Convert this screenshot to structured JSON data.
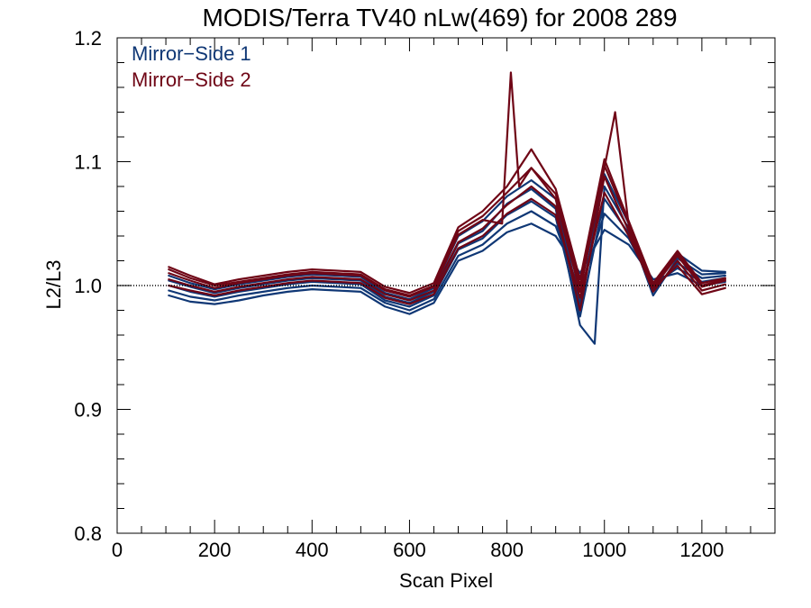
{
  "chart_data": {
    "type": "line",
    "title": "MODIS/Terra TV40 nLw(469) for 2008 289",
    "xlabel": "Scan Pixel",
    "ylabel": "L2/L3",
    "xlim": [
      0,
      1350
    ],
    "ylim": [
      0.8,
      1.2
    ],
    "x_ticks": [
      0,
      200,
      400,
      600,
      800,
      1000,
      1200
    ],
    "y_ticks": [
      0.8,
      0.9,
      1.0,
      1.1,
      1.2
    ],
    "x_tick_labels": [
      "0",
      "200",
      "400",
      "600",
      "800",
      "1000",
      "1200"
    ],
    "y_tick_labels": [
      "0.8",
      "0.9",
      "1.0",
      "1.1",
      "1.2"
    ],
    "reference_line": 1.0,
    "legend": {
      "location": "top-left",
      "entries": [
        {
          "label": "Mirror−Side 1",
          "color": "#0f3775"
        },
        {
          "label": "Mirror−Side 2",
          "color": "#6f0616"
        }
      ]
    },
    "series": [
      {
        "name": "Mirror-Side 1",
        "color": "#0f3775",
        "lines": [
          {
            "x": [
              106,
              150,
              200,
              250,
              300,
              350,
              400,
              450,
              500,
              550,
              600,
              650,
              700,
              750,
              800,
              850,
              900,
              950,
              1000,
              1050,
              1100,
              1150,
              1200,
              1248
            ],
            "y": [
              0.992,
              0.987,
              0.985,
              0.988,
              0.992,
              0.995,
              0.997,
              0.996,
              0.995,
              0.983,
              0.977,
              0.986,
              1.02,
              1.028,
              1.043,
              1.05,
              1.04,
              1.01,
              1.045,
              1.033,
              1.005,
              1.01,
              1.0,
              1.003
            ]
          },
          {
            "x": [
              106,
              150,
              200,
              250,
              300,
              350,
              400,
              450,
              500,
              550,
              600,
              650,
              700,
              750,
              800,
              850,
              900,
              950,
              1000,
              1050,
              1100,
              1150,
              1200,
              1248
            ],
            "y": [
              0.996,
              0.991,
              0.988,
              0.992,
              0.995,
              0.998,
              1.0,
              0.999,
              0.998,
              0.986,
              0.98,
              0.989,
              1.024,
              1.033,
              1.05,
              1.06,
              1.048,
              0.995,
              1.058,
              1.038,
              1.001,
              1.014,
              1.003,
              1.006
            ]
          },
          {
            "x": [
              106,
              150,
              200,
              250,
              300,
              350,
              400,
              450,
              500,
              550,
              600,
              650,
              700,
              750,
              800,
              850,
              900,
              950,
              1000,
              1050,
              1100,
              1150,
              1200,
              1248
            ],
            "y": [
              1.0,
              0.995,
              0.991,
              0.995,
              0.998,
              1.001,
              1.003,
              1.002,
              1.001,
              0.988,
              0.983,
              0.992,
              1.029,
              1.038,
              1.057,
              1.068,
              1.055,
              0.975,
              1.07,
              1.042,
              0.996,
              1.018,
              1.006,
              1.008
            ]
          },
          {
            "x": [
              106,
              150,
              200,
              250,
              300,
              350,
              400,
              450,
              500,
              550,
              600,
              650,
              700,
              750,
              800,
              850,
              900,
              950,
              980,
              1000,
              1050,
              1100,
              1150,
              1200,
              1248
            ],
            "y": [
              1.004,
              0.999,
              0.994,
              0.998,
              1.001,
              1.004,
              1.006,
              1.005,
              1.004,
              0.991,
              0.986,
              0.995,
              1.034,
              1.044,
              1.066,
              1.078,
              1.062,
              0.968,
              0.953,
              1.08,
              1.046,
              0.992,
              1.022,
              1.009,
              1.01
            ]
          },
          {
            "x": [
              106,
              150,
              200,
              250,
              300,
              350,
              400,
              450,
              500,
              550,
              600,
              650,
              700,
              750,
              800,
              850,
              900,
              950,
              1000,
              1050,
              1100,
              1150,
              1200,
              1248
            ],
            "y": [
              1.008,
              1.002,
              0.997,
              1.001,
              1.004,
              1.007,
              1.009,
              1.008,
              1.007,
              0.994,
              0.989,
              0.998,
              1.04,
              1.052,
              1.072,
              1.085,
              1.07,
              0.985,
              1.09,
              1.05,
              0.999,
              1.026,
              1.012,
              1.011
            ]
          }
        ]
      },
      {
        "name": "Mirror-Side 2",
        "color": "#6f0616",
        "lines": [
          {
            "x": [
              106,
              150,
              200,
              250,
              300,
              350,
              400,
              450,
              500,
              550,
              600,
              650,
              700,
              750,
              800,
              850,
              900,
              950,
              1000,
              1050,
              1100,
              1150,
              1200,
              1248
            ],
            "y": [
              1.0,
              0.996,
              0.992,
              0.996,
              0.999,
              1.002,
              1.004,
              1.003,
              1.002,
              0.99,
              0.985,
              0.993,
              1.03,
              1.04,
              1.058,
              1.07,
              1.057,
              0.99,
              1.075,
              1.04,
              0.998,
              1.016,
              0.993,
              0.998
            ]
          },
          {
            "x": [
              106,
              150,
              200,
              250,
              300,
              350,
              400,
              450,
              500,
              550,
              600,
              650,
              700,
              750,
              800,
              850,
              900,
              950,
              1000,
              1050,
              1100,
              1150,
              1200,
              1248
            ],
            "y": [
              1.005,
              1.0,
              0.995,
              0.999,
              1.002,
              1.005,
              1.007,
              1.006,
              1.005,
              0.993,
              0.988,
              0.996,
              1.035,
              1.046,
              1.065,
              1.08,
              1.064,
              0.98,
              1.088,
              1.044,
              0.995,
              1.02,
              0.996,
              1.001
            ]
          },
          {
            "x": [
              106,
              150,
              200,
              250,
              300,
              350,
              400,
              450,
              500,
              550,
              600,
              650,
              700,
              750,
              790,
              808,
              825,
              850,
              900,
              950,
              1000,
              1022,
              1050,
              1100,
              1150,
              1200,
              1248
            ],
            "y": [
              1.01,
              1.004,
              0.998,
              1.002,
              1.005,
              1.008,
              1.01,
              1.009,
              1.008,
              0.996,
              0.991,
              0.999,
              1.041,
              1.053,
              1.05,
              1.172,
              1.08,
              1.095,
              1.07,
              0.995,
              1.095,
              1.14,
              1.048,
              0.998,
              1.024,
              0.999,
              1.004
            ]
          },
          {
            "x": [
              106,
              150,
              200,
              250,
              300,
              350,
              400,
              450,
              500,
              550,
              600,
              650,
              700,
              750,
              800,
              850,
              900,
              950,
              1000,
              1050,
              1100,
              1150,
              1200,
              1248
            ],
            "y": [
              1.015,
              1.008,
              1.001,
              1.005,
              1.008,
              1.011,
              1.013,
              1.012,
              1.011,
              0.999,
              0.994,
              1.002,
              1.047,
              1.06,
              1.08,
              1.11,
              1.078,
              1.005,
              1.102,
              1.052,
              1.002,
              1.028,
              1.002,
              1.006
            ]
          },
          {
            "x": [
              106,
              150,
              200,
              250,
              300,
              350,
              400,
              450,
              500,
              550,
              600,
              650,
              700,
              750,
              800,
              850,
              900,
              950,
              1000,
              1050,
              1100,
              1150,
              1200,
              1248
            ],
            "y": [
              1.013,
              1.006,
              1.0,
              1.003,
              1.006,
              1.009,
              1.011,
              1.01,
              1.009,
              0.997,
              0.992,
              1.0,
              1.044,
              1.056,
              1.075,
              1.095,
              1.074,
              1.0,
              1.097,
              1.05,
              1.0,
              1.026,
              1.0,
              1.005
            ]
          }
        ]
      }
    ]
  }
}
